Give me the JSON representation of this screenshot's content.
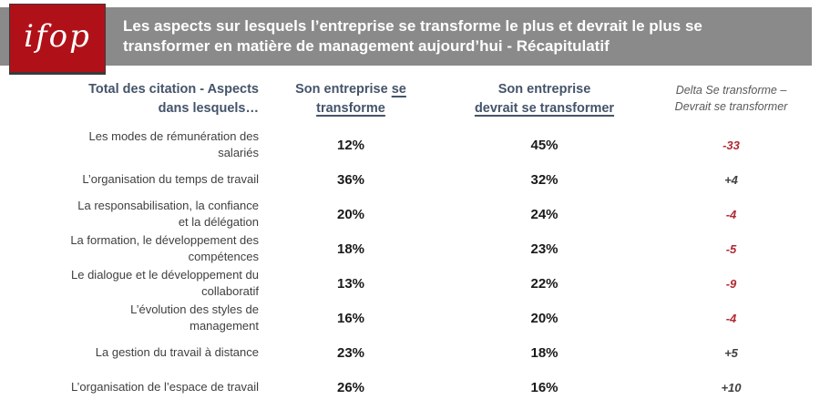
{
  "banner": {
    "logo": "ifop",
    "title": "Les aspects sur lesquels l’entreprise se transforme le plus et devrait le plus se transformer en matière de management aujourd’hui - Récapitulatif"
  },
  "columns": {
    "aspects": "Total des citation - Aspects\ndans lesquels…",
    "c2_plain": "Son entreprise",
    "c2_u1": "se",
    "c2_u2": "transforme",
    "c3_plain": "Son entreprise",
    "c3_u": "devrait se transformer",
    "delta": "Delta Se transforme –\nDevrait se transformer"
  },
  "rows": [
    {
      "aspect": "Les modes de rémunération des\nsalariés",
      "transforme": "12%",
      "devrait": "45%",
      "delta": "-33"
    },
    {
      "aspect": "L’organisation du temps de travail",
      "transforme": "36%",
      "devrait": "32%",
      "delta": "+4"
    },
    {
      "aspect": "La responsabilisation, la confiance\net la délégation",
      "transforme": "20%",
      "devrait": "24%",
      "delta": "-4"
    },
    {
      "aspect": "La formation, le développement des\ncompétences",
      "transforme": "18%",
      "devrait": "23%",
      "delta": "-5"
    },
    {
      "aspect": "Le dialogue et le développement du\ncollaboratif",
      "transforme": "13%",
      "devrait": "22%",
      "delta": "-9"
    },
    {
      "aspect": "L’évolution des styles de\nmanagement",
      "transforme": "16%",
      "devrait": "20%",
      "delta": "-4"
    },
    {
      "aspect": "La gestion du travail à distance",
      "transforme": "23%",
      "devrait": "18%",
      "delta": "+5"
    },
    {
      "aspect": "L’organisation de l’espace de travail",
      "transforme": "26%",
      "devrait": "16%",
      "delta": "+10"
    }
  ],
  "colors": {
    "banner_bg": "#8a8a8a",
    "banner_text": "#ffffff",
    "logo_bg": "#b01118",
    "logo_text_color": "#ffffff",
    "heading_text": "#44546a",
    "delta_heading_text": "#595959",
    "label_text": "#3f3f3f",
    "value_text": "#1a1a1a",
    "delta_negative": "#b02a33",
    "delta_positive": "#404040"
  }
}
